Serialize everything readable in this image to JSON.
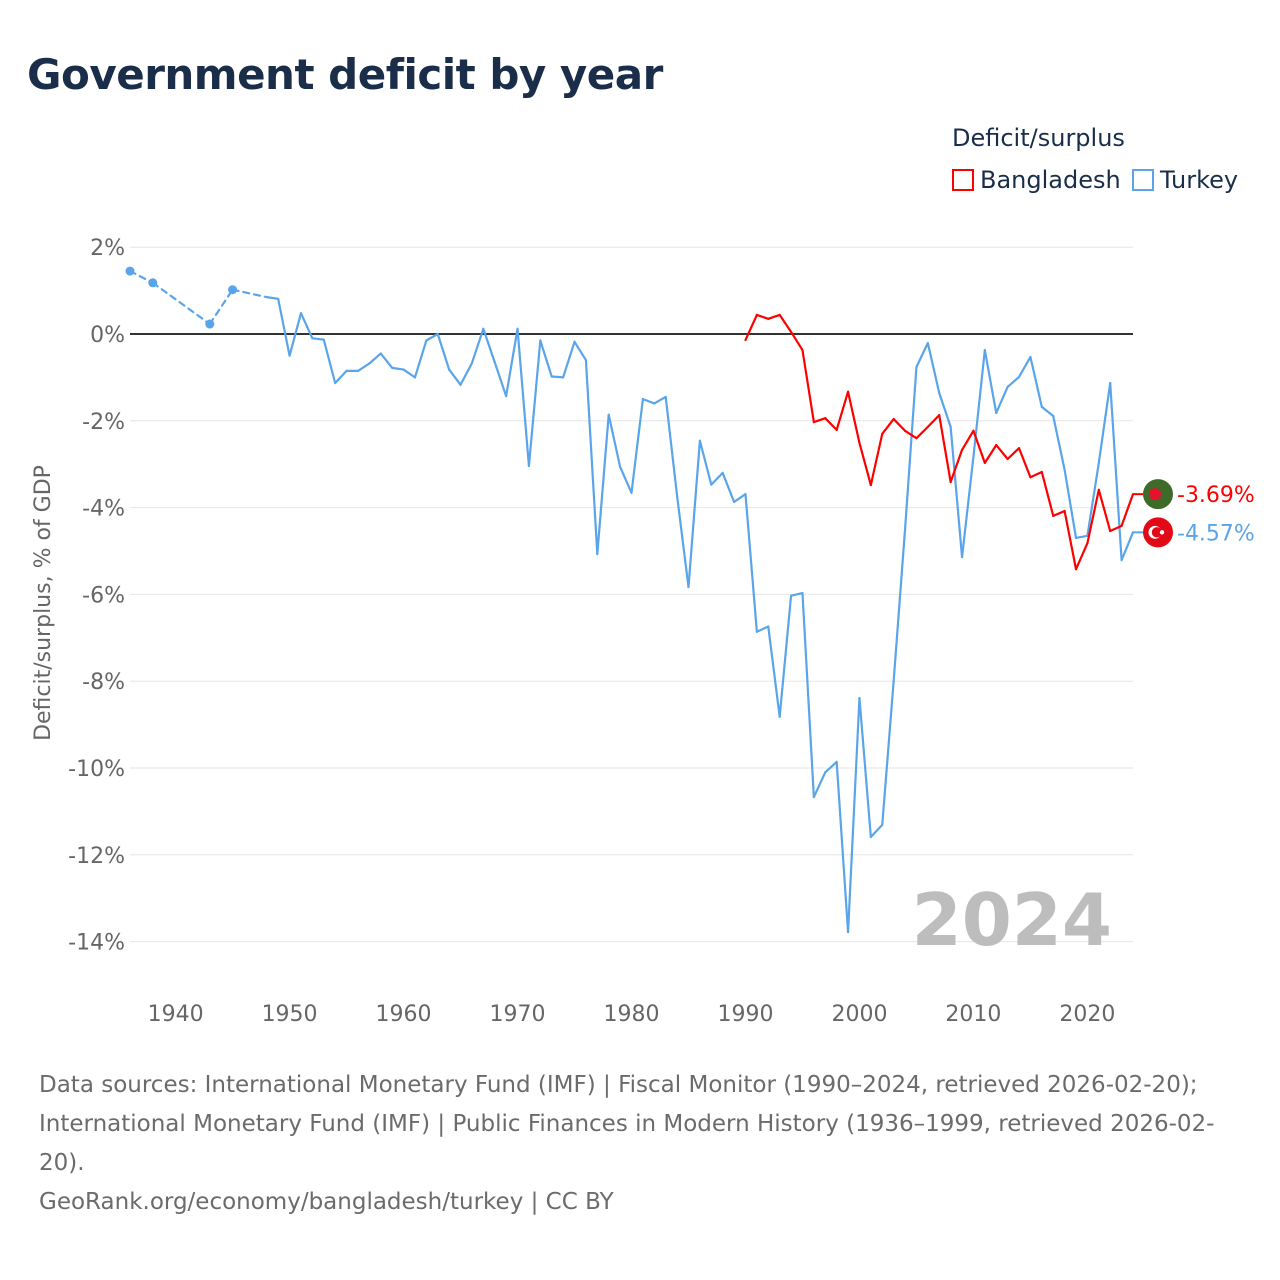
{
  "title": "Government deficit by year",
  "legend": {
    "title": "Deficit/surplus",
    "items": [
      "Bangladesh",
      "Turkey"
    ]
  },
  "footer": {
    "sources": "Data sources: International Monetary Fund (IMF) | Fiscal Monitor (1990–2024, retrieved 2026-02-20); International Monetary Fund (IMF) | Public Finances in Modern History (1936–1999, retrieved 2026-02-20).",
    "credit": "GeoRank.org/economy/bangladesh/turkey | CC BY"
  },
  "chart_data": {
    "type": "line",
    "title": "Government deficit by year",
    "xlabel": "",
    "ylabel": "Deficit/surplus, % of GDP",
    "xlim": [
      1936,
      2024
    ],
    "ylim": [
      -15,
      2.5
    ],
    "xticks": [
      1940,
      1950,
      1960,
      1970,
      1980,
      1990,
      2000,
      2010,
      2020
    ],
    "yticks": [
      2,
      0,
      -2,
      -4,
      -6,
      -8,
      -10,
      -12,
      -14
    ],
    "ytick_labels": [
      "2%",
      "0%",
      "-2%",
      "-4%",
      "-6%",
      "-8%",
      "-10%",
      "-12%",
      "-14%"
    ],
    "xtick_labels": [
      "1940",
      "1950",
      "1960",
      "1970",
      "1980",
      "1990",
      "2000",
      "2010",
      "2020"
    ],
    "grid": true,
    "legend_position": "top-right",
    "year_watermark": "2024",
    "series": [
      {
        "name": "Bangladesh",
        "color": "#ff0000",
        "end_label": "-3.69%",
        "flag": {
          "bg": "#3f6b2a",
          "dot": "#e8112d"
        },
        "x": [
          1990,
          1991,
          1992,
          1993,
          1994,
          1995,
          1996,
          1997,
          1998,
          1999,
          2000,
          2001,
          2002,
          2003,
          2004,
          2005,
          2006,
          2007,
          2008,
          2009,
          2010,
          2011,
          2012,
          2013,
          2014,
          2015,
          2016,
          2017,
          2018,
          2019,
          2020,
          2021,
          2022,
          2023,
          2024
        ],
        "values": [
          -0.14,
          0.44,
          0.35,
          0.44,
          0.05,
          -0.37,
          -2.03,
          -1.94,
          -2.21,
          -1.33,
          -2.51,
          -3.48,
          -2.3,
          -1.96,
          -2.23,
          -2.4,
          -2.14,
          -1.87,
          -3.41,
          -2.67,
          -2.23,
          -2.97,
          -2.56,
          -2.88,
          -2.63,
          -3.3,
          -3.18,
          -4.19,
          -4.08,
          -5.42,
          -4.82,
          -3.59,
          -4.54,
          -4.42,
          -3.69
        ]
      },
      {
        "name": "Turkey",
        "color": "#5aa5ea",
        "end_label": "-4.57%",
        "flag": {
          "bg": "#e30a17",
          "dot": "#ffffff"
        },
        "x": [
          1936,
          1938,
          1943,
          1945,
          1948,
          1949,
          1950,
          1951,
          1952,
          1953,
          1954,
          1955,
          1956,
          1957,
          1958,
          1959,
          1960,
          1961,
          1962,
          1963,
          1964,
          1965,
          1966,
          1967,
          1968,
          1969,
          1970,
          1971,
          1972,
          1973,
          1974,
          1975,
          1976,
          1977,
          1978,
          1979,
          1980,
          1981,
          1982,
          1983,
          1984,
          1985,
          1986,
          1987,
          1988,
          1989,
          1990,
          1991,
          1992,
          1993,
          1994,
          1995,
          1996,
          1997,
          1998,
          1999,
          2000,
          2001,
          2002,
          2003,
          2004,
          2005,
          2006,
          2007,
          2008,
          2009,
          2010,
          2011,
          2012,
          2013,
          2014,
          2015,
          2016,
          2017,
          2018,
          2019,
          2020,
          2021,
          2022,
          2023,
          2024
        ],
        "values": [
          1.45,
          1.18,
          0.23,
          1.02,
          0.85,
          0.81,
          -0.5,
          0.48,
          -0.1,
          -0.13,
          -1.13,
          -0.85,
          -0.85,
          -0.68,
          -0.45,
          -0.78,
          -0.82,
          -1.0,
          -0.15,
          0.0,
          -0.82,
          -1.17,
          -0.67,
          0.12,
          -0.65,
          -1.43,
          0.12,
          -3.04,
          -0.15,
          -0.98,
          -1.0,
          -0.18,
          -0.6,
          -5.07,
          -1.86,
          -3.06,
          -3.66,
          -1.5,
          -1.6,
          -1.45,
          -3.73,
          -5.83,
          -2.46,
          -3.47,
          -3.2,
          -3.87,
          -3.69,
          -6.86,
          -6.74,
          -8.82,
          -6.03,
          -5.97,
          -10.67,
          -10.1,
          -9.86,
          -13.78,
          -8.39,
          -11.59,
          -11.31,
          -8.0,
          -4.5,
          -0.76,
          -0.21,
          -1.36,
          -2.14,
          -5.14,
          -2.83,
          -0.37,
          -1.82,
          -1.22,
          -0.99,
          -0.53,
          -1.68,
          -1.89,
          -3.13,
          -4.7,
          -4.65,
          -2.97,
          -1.13,
          -5.21,
          -4.57
        ]
      }
    ]
  }
}
